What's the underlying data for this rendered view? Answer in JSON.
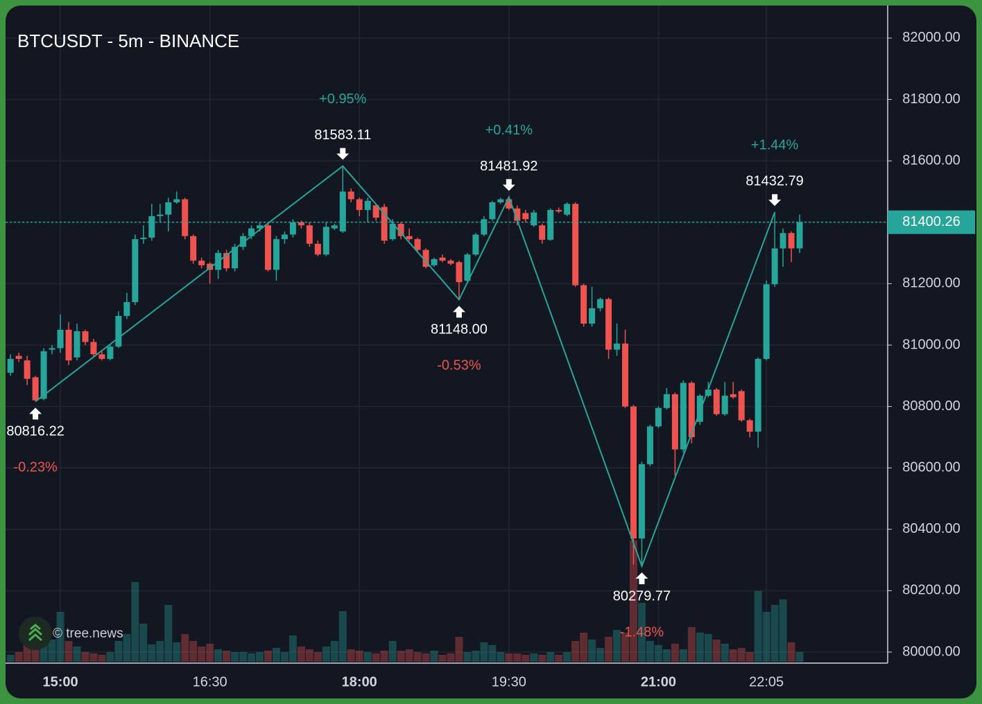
{
  "chart_data": {
    "type": "candlestick",
    "title": "BTCUSDT - 5m - BINANCE",
    "watermark": "© tree.news",
    "up_color": "#26a69a",
    "down_color": "#ef5350",
    "grid": true,
    "x": [
      "14:30",
      "14:35",
      "14:40",
      "14:45",
      "14:50",
      "14:55",
      "15:00",
      "15:05",
      "15:10",
      "15:15",
      "15:20",
      "15:25",
      "15:30",
      "15:35",
      "15:40",
      "15:45",
      "15:50",
      "15:55",
      "16:00",
      "16:05",
      "16:10",
      "16:15",
      "16:20",
      "16:25",
      "16:30",
      "16:35",
      "16:40",
      "16:45",
      "16:50",
      "16:55",
      "17:00",
      "17:05",
      "17:10",
      "17:15",
      "17:20",
      "17:25",
      "17:30",
      "17:35",
      "17:40",
      "17:45",
      "17:50",
      "17:55",
      "18:00",
      "18:05",
      "18:10",
      "18:15",
      "18:20",
      "18:25",
      "18:30",
      "18:35",
      "18:40",
      "18:45",
      "18:50",
      "18:55",
      "19:00",
      "19:05",
      "19:10",
      "19:15",
      "19:20",
      "19:25",
      "19:30",
      "19:35",
      "19:40",
      "19:45",
      "19:50",
      "19:55",
      "20:00",
      "20:05",
      "20:10",
      "20:15",
      "20:20",
      "20:25",
      "20:30",
      "20:35",
      "20:40",
      "20:45",
      "20:50",
      "20:55",
      "21:00",
      "21:05",
      "21:10",
      "21:15",
      "21:20",
      "21:25",
      "21:30",
      "21:35",
      "21:40",
      "21:45",
      "21:50",
      "21:55",
      "22:00",
      "22:05",
      "22:10",
      "22:15",
      "22:20",
      "22:25"
    ],
    "open": [
      80910,
      80965,
      80950,
      80895,
      80825,
      80985,
      80990,
      81050,
      80960,
      81045,
      81010,
      80970,
      80955,
      80995,
      81095,
      81140,
      81345,
      81350,
      81420,
      81425,
      81465,
      81475,
      81355,
      81275,
      81265,
      81245,
      81300,
      81250,
      81320,
      81355,
      81380,
      81390,
      81245,
      81345,
      81360,
      81400,
      81390,
      81330,
      81295,
      81380,
      81370,
      81500,
      81475,
      81440,
      81455,
      81450,
      81345,
      81395,
      81355,
      81345,
      81310,
      81260,
      81285,
      81275,
      81270,
      81210,
      81295,
      81360,
      81410,
      81465,
      81475,
      81445,
      81430,
      81390,
      81390,
      81343,
      81440,
      81425,
      81460,
      81195,
      81070,
      81120,
      81150,
      80985,
      81005,
      80800,
      80370,
      80612,
      80735,
      80795,
      80840,
      80660,
      80877,
      80750,
      80835,
      80855,
      80775,
      80840,
      80850,
      80755,
      80718,
      80955,
      81198,
      81315,
      81365,
      81315
    ],
    "high": [
      80970,
      80975,
      80965,
      80900,
      80990,
      81000,
      81100,
      81075,
      81070,
      81050,
      81020,
      80980,
      81000,
      81110,
      81170,
      81360,
      81390,
      81460,
      81460,
      81480,
      81500,
      81480,
      81360,
      81285,
      81270,
      81310,
      81310,
      81330,
      81365,
      81390,
      81400,
      81400,
      81355,
      81370,
      81410,
      81405,
      81400,
      81340,
      81400,
      81395,
      81583.11,
      81510,
      81480,
      81480,
      81460,
      81460,
      81410,
      81400,
      81380,
      81350,
      81315,
      81285,
      81295,
      81280,
      81275,
      81300,
      81365,
      81420,
      81470,
      81480,
      81481.92,
      81455,
      81440,
      81440,
      81395,
      81445,
      81448,
      81465,
      81465,
      81200,
      81190,
      81155,
      81155,
      81070,
      81050,
      80805,
      80620,
      80740,
      80800,
      80860,
      80845,
      80885,
      80882,
      80840,
      80880,
      80860,
      80880,
      80880,
      80855,
      80760,
      80960,
      81210,
      81432.79,
      81380,
      81370,
      81425
    ],
    "low": [
      80900,
      80945,
      80870,
      80816.22,
      80820,
      80970,
      80975,
      80935,
      80950,
      81000,
      80960,
      80950,
      80950,
      80990,
      81085,
      81130,
      81330,
      81340,
      81400,
      81370,
      81460,
      81345,
      81265,
      81250,
      81200,
      81215,
      81240,
      81240,
      81310,
      81345,
      81370,
      81240,
      81210,
      81330,
      81350,
      81380,
      81320,
      81290,
      81290,
      81375,
      81365,
      81465,
      81420,
      81400,
      81405,
      81330,
      81340,
      81345,
      81340,
      81300,
      81250,
      81255,
      81270,
      81260,
      81148,
      81205,
      81290,
      81355,
      81405,
      81460,
      81440,
      81390,
      81400,
      81385,
      81330,
      81340,
      81430,
      81420,
      81190,
      81060,
      81060,
      81110,
      80955,
      80965,
      80795,
      80285,
      80279.77,
      80605,
      80730,
      80790,
      80575,
      80650,
      80680,
      80740,
      80830,
      80770,
      80770,
      80825,
      80750,
      80700,
      80665,
      80950,
      81190,
      81255,
      81270,
      81300
    ],
    "close": [
      80955,
      80955,
      80890,
      80820,
      80980,
      80990,
      81050,
      80950,
      81045,
      81010,
      80970,
      80955,
      80995,
      81095,
      81140,
      81345,
      81350,
      81420,
      81425,
      81465,
      81475,
      81355,
      81275,
      81260,
      81245,
      81300,
      81250,
      81320,
      81355,
      81380,
      81390,
      81245,
      81345,
      81360,
      81400,
      81390,
      81330,
      81295,
      81385,
      81390,
      81500,
      81475,
      81440,
      81470,
      81415,
      81340,
      81395,
      81355,
      81345,
      81310,
      81255,
      81280,
      81275,
      81265,
      81205,
      81295,
      81360,
      81410,
      81465,
      81475,
      81445,
      81405,
      81410,
      81432,
      81343,
      81440,
      81435,
      81460,
      81195,
      81070,
      81120,
      81150,
      80985,
      81005,
      80800,
      80370,
      80612,
      80735,
      80795,
      80840,
      80660,
      80877,
      80700,
      80835,
      80855,
      80775,
      80835,
      80830,
      80755,
      80718,
      80955,
      81198,
      81315,
      81365,
      81315,
      81400.26
    ],
    "volume": [
      10,
      14,
      25,
      30,
      28,
      32,
      72,
      30,
      22,
      14,
      12,
      10,
      14,
      30,
      40,
      115,
      55,
      25,
      30,
      82,
      28,
      40,
      30,
      22,
      26,
      18,
      16,
      14,
      14,
      12,
      14,
      16,
      20,
      14,
      38,
      22,
      18,
      14,
      22,
      30,
      73,
      18,
      16,
      14,
      12,
      16,
      30,
      16,
      18,
      14,
      12,
      16,
      10,
      12,
      36,
      14,
      16,
      28,
      24,
      14,
      12,
      12,
      10,
      12,
      10,
      14,
      10,
      14,
      30,
      42,
      32,
      20,
      36,
      46,
      42,
      175,
      85,
      30,
      24,
      18,
      26,
      18,
      50,
      42,
      40,
      32,
      26,
      18,
      20,
      14,
      102,
      72,
      82,
      90,
      28,
      14
    ],
    "last_price": 81400.26,
    "swings": [
      {
        "time": "14:45",
        "price": 80816.22,
        "change": {
          "value": -0.23,
          "label": "-0.23%"
        }
      },
      {
        "time": "17:50",
        "price": 81583.11,
        "change": {
          "value": 0.95,
          "label": "+0.95%"
        }
      },
      {
        "time": "19:00",
        "price": {
          "value": 81148,
          "label": "81148.00"
        },
        "change": {
          "value": -0.53,
          "label": "-0.53%"
        }
      },
      {
        "time": "19:30",
        "price": 81481.92,
        "change": {
          "value": 0.41,
          "label": "+0.41%"
        }
      },
      {
        "time": "20:50",
        "price": 80279.77,
        "change": {
          "value": -1.48,
          "label": "-1.48%"
        }
      },
      {
        "time": "22:10",
        "price": 81432.79,
        "change": {
          "value": 1.44,
          "label": "+1.44%"
        }
      }
    ],
    "xlim": [
      "14:27",
      "23:18"
    ],
    "xticks": [
      "15:00",
      "16:30",
      "18:00",
      "19:30",
      "21:00",
      "22:05"
    ],
    "ylim": [
      79964,
      82106
    ],
    "yticks": [
      {
        "value": 80000,
        "label": "80000.00"
      },
      {
        "value": 80200,
        "label": "80200.00"
      },
      {
        "value": 80400,
        "label": "80400.00"
      },
      {
        "value": 80600,
        "label": "80600.00"
      },
      {
        "value": 80800,
        "label": "80800.00"
      },
      {
        "value": 81000,
        "label": "81000.00"
      },
      {
        "value": 81200,
        "label": "81200.00"
      },
      {
        "value": 81400,
        "label": "81400.00"
      },
      {
        "value": 81600,
        "label": "81600.00"
      },
      {
        "value": 81800,
        "label": "81800.00"
      },
      {
        "value": 82000,
        "label": "82000.00"
      }
    ]
  }
}
